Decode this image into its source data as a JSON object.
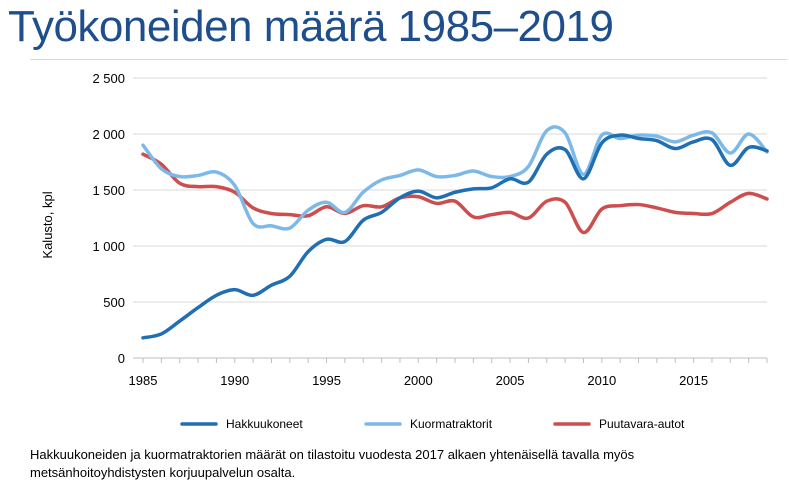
{
  "page": {
    "title": "Työkoneiden määrä 1985–2019",
    "footnote": "Hakkuukoneiden ja kuormatraktorien määrät on tilastoitu vuodesta 2017 alkaen yhtenäisellä tavalla myös metsänhoitoyhdistysten korjuupalvelun osalta."
  },
  "chart_data": {
    "type": "line",
    "title": "",
    "xlabel": "",
    "ylabel": "Kalusto, kpl",
    "xlim": [
      1985,
      2019
    ],
    "ylim": [
      0,
      2500
    ],
    "x_ticks": [
      1985,
      1990,
      1995,
      2000,
      2005,
      2010,
      2015
    ],
    "x_tick_labels": [
      "1985",
      "1990",
      "1995",
      "2000",
      "2005",
      "2010",
      "2015"
    ],
    "y_ticks": [
      0,
      500,
      1000,
      1500,
      2000,
      2500
    ],
    "y_tick_labels": [
      "0",
      "500",
      "1 000",
      "1 500",
      "2 000",
      "2 500"
    ],
    "grid": "horizontal",
    "legend_position": "bottom",
    "x": [
      1985,
      1986,
      1987,
      1988,
      1989,
      1990,
      1991,
      1992,
      1993,
      1994,
      1995,
      1996,
      1997,
      1998,
      1999,
      2000,
      2001,
      2002,
      2003,
      2004,
      2005,
      2006,
      2007,
      2008,
      2009,
      2010,
      2011,
      2012,
      2013,
      2014,
      2015,
      2016,
      2017,
      2018,
      2019
    ],
    "series": [
      {
        "name": "Hakkuukoneet",
        "color": "#1f6fb2",
        "values": [
          180,
          215,
          330,
          450,
          560,
          610,
          560,
          650,
          730,
          950,
          1060,
          1040,
          1230,
          1300,
          1430,
          1490,
          1430,
          1480,
          1510,
          1520,
          1600,
          1570,
          1820,
          1860,
          1600,
          1920,
          1990,
          1960,
          1940,
          1870,
          1930,
          1950,
          1720,
          1880,
          1850
        ]
      },
      {
        "name": "Kuormatraktorit",
        "color": "#7db9e8",
        "values": [
          1900,
          1690,
          1620,
          1630,
          1660,
          1540,
          1200,
          1180,
          1160,
          1320,
          1390,
          1300,
          1480,
          1590,
          1630,
          1680,
          1620,
          1630,
          1670,
          1620,
          1620,
          1710,
          2030,
          2010,
          1640,
          1990,
          1960,
          1990,
          1980,
          1930,
          1990,
          2010,
          1830,
          2000,
          1840
        ]
      },
      {
        "name": "Puutavara-autot",
        "color": "#cc4e4e",
        "values": [
          1820,
          1730,
          1560,
          1530,
          1530,
          1480,
          1340,
          1290,
          1280,
          1270,
          1350,
          1290,
          1360,
          1350,
          1430,
          1440,
          1380,
          1400,
          1260,
          1280,
          1300,
          1250,
          1400,
          1390,
          1120,
          1330,
          1360,
          1370,
          1340,
          1300,
          1290,
          1290,
          1390,
          1470,
          1420
        ]
      }
    ]
  }
}
